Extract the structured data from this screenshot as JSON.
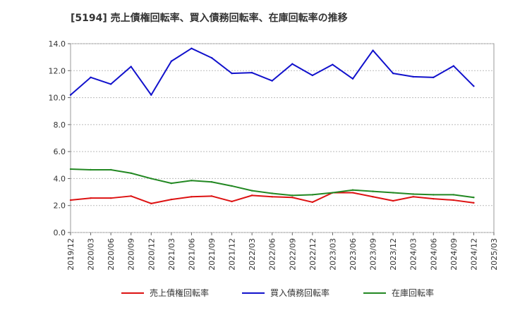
{
  "chart_data": {
    "type": "line",
    "title": "[5194]  売上債権回転率、買入債務回転率、在庫回転率の推移",
    "xlabel": "",
    "ylabel": "",
    "ylim": [
      0,
      14
    ],
    "y_ticks": [
      "0.0",
      "2.0",
      "4.0",
      "6.0",
      "8.0",
      "10.0",
      "12.0",
      "14.0"
    ],
    "grid": true,
    "legend_position": "bottom",
    "categories": [
      "2019/12",
      "2020/03",
      "2020/06",
      "2020/09",
      "2020/12",
      "2021/03",
      "2021/06",
      "2021/09",
      "2021/12",
      "2022/03",
      "2022/06",
      "2022/09",
      "2022/12",
      "2023/03",
      "2023/06",
      "2023/09",
      "2023/12",
      "2024/03",
      "2024/06",
      "2024/09",
      "2024/12",
      "2025/03"
    ],
    "series": [
      {
        "name": "売上債権回転率",
        "color": "#dd1111",
        "values": [
          2.4,
          2.55,
          2.55,
          2.7,
          2.15,
          2.45,
          2.65,
          2.7,
          2.3,
          2.75,
          2.65,
          2.6,
          2.25,
          2.95,
          2.95,
          2.65,
          2.35,
          2.65,
          2.5,
          2.4,
          2.2,
          null
        ]
      },
      {
        "name": "買入債務回転率",
        "color": "#1111cc",
        "values": [
          10.2,
          11.5,
          11.0,
          12.3,
          10.2,
          12.7,
          13.65,
          12.95,
          11.8,
          11.85,
          11.25,
          12.5,
          11.65,
          12.45,
          11.4,
          13.5,
          11.8,
          11.55,
          11.5,
          12.35,
          10.85,
          null
        ]
      },
      {
        "name": "在庫回転率",
        "color": "#228822",
        "values": [
          4.7,
          4.65,
          4.65,
          4.4,
          4.0,
          3.65,
          3.85,
          3.75,
          3.45,
          3.1,
          2.9,
          2.75,
          2.8,
          2.95,
          3.15,
          3.05,
          2.95,
          2.85,
          2.8,
          2.8,
          2.6,
          null
        ]
      }
    ]
  }
}
